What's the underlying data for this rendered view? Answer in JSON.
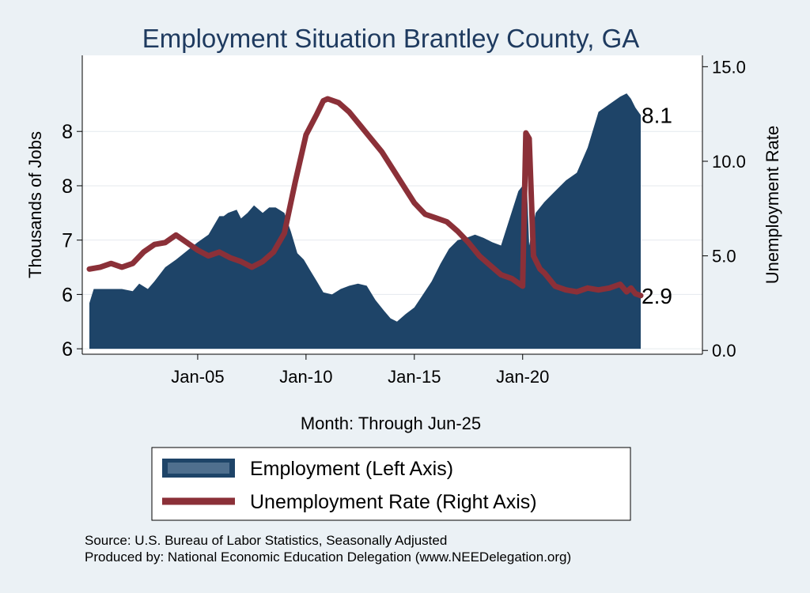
{
  "chart_data": {
    "type": "bar+line",
    "title": "Employment Situation Brantley  County, GA",
    "xlabel": "Month: Through Jun-25",
    "ylabel_left": "Thousands of Jobs",
    "ylabel_right": "Unemployment Rate",
    "x_range": [
      2000.0,
      2025.45
    ],
    "x_ticks": [
      {
        "label": "Jan-05",
        "value": 2005.0
      },
      {
        "label": "Jan-10",
        "value": 2010.0
      },
      {
        "label": "Jan-15",
        "value": 2015.0
      },
      {
        "label": "Jan-20",
        "value": 2020.0
      }
    ],
    "left_axis": {
      "ylim": [
        5.95,
        8.7
      ],
      "ticks": [
        {
          "label": "6",
          "value": 6.0
        },
        {
          "label": "6",
          "value": 6.5
        },
        {
          "label": "7",
          "value": 7.0
        },
        {
          "label": "8",
          "value": 7.5
        },
        {
          "label": "8",
          "value": 8.0
        }
      ]
    },
    "right_axis": {
      "ylim": [
        -0.2,
        15.6
      ],
      "ticks": [
        {
          "label": "0.0",
          "value": 0.0
        },
        {
          "label": "5.0",
          "value": 5.0
        },
        {
          "label": "10.0",
          "value": 10.0
        },
        {
          "label": "15.0",
          "value": 15.0
        }
      ]
    },
    "series": [
      {
        "name": "Employment (Left Axis)",
        "kind": "bar",
        "color": "#1e4468",
        "points": [
          [
            2000.0,
            6.42
          ],
          [
            2000.2,
            6.55
          ],
          [
            2000.5,
            6.55
          ],
          [
            2001.0,
            6.55
          ],
          [
            2001.5,
            6.55
          ],
          [
            2002.0,
            6.53
          ],
          [
            2002.3,
            6.6
          ],
          [
            2002.7,
            6.55
          ],
          [
            2003.0,
            6.62
          ],
          [
            2003.5,
            6.75
          ],
          [
            2004.0,
            6.82
          ],
          [
            2004.5,
            6.9
          ],
          [
            2005.0,
            6.98
          ],
          [
            2005.5,
            7.05
          ],
          [
            2006.0,
            7.22
          ],
          [
            2006.2,
            7.22
          ],
          [
            2006.4,
            7.25
          ],
          [
            2006.8,
            7.28
          ],
          [
            2007.0,
            7.2
          ],
          [
            2007.3,
            7.25
          ],
          [
            2007.6,
            7.32
          ],
          [
            2008.0,
            7.25
          ],
          [
            2008.3,
            7.3
          ],
          [
            2008.6,
            7.3
          ],
          [
            2009.0,
            7.25
          ],
          [
            2009.3,
            7.08
          ],
          [
            2009.6,
            6.88
          ],
          [
            2009.9,
            6.82
          ],
          [
            2010.2,
            6.72
          ],
          [
            2010.5,
            6.62
          ],
          [
            2010.8,
            6.52
          ],
          [
            2011.2,
            6.5
          ],
          [
            2011.6,
            6.55
          ],
          [
            2012.0,
            6.58
          ],
          [
            2012.4,
            6.6
          ],
          [
            2012.8,
            6.58
          ],
          [
            2013.2,
            6.45
          ],
          [
            2013.6,
            6.35
          ],
          [
            2013.9,
            6.28
          ],
          [
            2014.2,
            6.25
          ],
          [
            2014.6,
            6.32
          ],
          [
            2015.0,
            6.38
          ],
          [
            2015.4,
            6.5
          ],
          [
            2015.8,
            6.62
          ],
          [
            2016.2,
            6.78
          ],
          [
            2016.6,
            6.92
          ],
          [
            2017.0,
            7.0
          ],
          [
            2017.4,
            7.02
          ],
          [
            2017.8,
            7.05
          ],
          [
            2018.2,
            7.02
          ],
          [
            2018.6,
            6.98
          ],
          [
            2019.0,
            6.95
          ],
          [
            2019.4,
            7.2
          ],
          [
            2019.8,
            7.45
          ],
          [
            2020.0,
            7.5
          ],
          [
            2020.2,
            7.48
          ],
          [
            2020.3,
            6.95
          ],
          [
            2020.6,
            7.25
          ],
          [
            2021.0,
            7.35
          ],
          [
            2021.5,
            7.45
          ],
          [
            2022.0,
            7.55
          ],
          [
            2022.5,
            7.62
          ],
          [
            2023.0,
            7.85
          ],
          [
            2023.5,
            8.18
          ],
          [
            2024.0,
            8.25
          ],
          [
            2024.5,
            8.32
          ],
          [
            2024.8,
            8.35
          ],
          [
            2025.0,
            8.3
          ],
          [
            2025.2,
            8.22
          ],
          [
            2025.45,
            8.15
          ]
        ]
      },
      {
        "name": "Unemployment Rate (Right Axis)",
        "kind": "line",
        "color": "#8b3038",
        "points": [
          [
            2000.0,
            4.3
          ],
          [
            2000.5,
            4.4
          ],
          [
            2001.0,
            4.6
          ],
          [
            2001.5,
            4.4
          ],
          [
            2002.0,
            4.6
          ],
          [
            2002.5,
            5.2
          ],
          [
            2003.0,
            5.6
          ],
          [
            2003.5,
            5.7
          ],
          [
            2004.0,
            6.1
          ],
          [
            2004.5,
            5.7
          ],
          [
            2005.0,
            5.3
          ],
          [
            2005.5,
            5.0
          ],
          [
            2006.0,
            5.2
          ],
          [
            2006.5,
            4.9
          ],
          [
            2007.0,
            4.7
          ],
          [
            2007.5,
            4.4
          ],
          [
            2008.0,
            4.7
          ],
          [
            2008.5,
            5.2
          ],
          [
            2009.0,
            6.2
          ],
          [
            2009.5,
            8.9
          ],
          [
            2010.0,
            11.4
          ],
          [
            2010.5,
            12.5
          ],
          [
            2010.8,
            13.2
          ],
          [
            2011.0,
            13.3
          ],
          [
            2011.5,
            13.1
          ],
          [
            2012.0,
            12.6
          ],
          [
            2012.5,
            11.9
          ],
          [
            2013.0,
            11.2
          ],
          [
            2013.5,
            10.5
          ],
          [
            2014.0,
            9.6
          ],
          [
            2014.5,
            8.7
          ],
          [
            2015.0,
            7.8
          ],
          [
            2015.5,
            7.2
          ],
          [
            2016.0,
            7.0
          ],
          [
            2016.5,
            6.8
          ],
          [
            2017.0,
            6.3
          ],
          [
            2017.5,
            5.7
          ],
          [
            2018.0,
            5.0
          ],
          [
            2018.5,
            4.5
          ],
          [
            2019.0,
            4.0
          ],
          [
            2019.5,
            3.8
          ],
          [
            2020.0,
            3.4
          ],
          [
            2020.15,
            11.5
          ],
          [
            2020.3,
            11.2
          ],
          [
            2020.5,
            5.0
          ],
          [
            2020.8,
            4.3
          ],
          [
            2021.0,
            4.1
          ],
          [
            2021.5,
            3.4
          ],
          [
            2022.0,
            3.2
          ],
          [
            2022.5,
            3.1
          ],
          [
            2023.0,
            3.3
          ],
          [
            2023.5,
            3.2
          ],
          [
            2024.0,
            3.3
          ],
          [
            2024.5,
            3.5
          ],
          [
            2024.8,
            3.1
          ],
          [
            2025.0,
            3.3
          ],
          [
            2025.2,
            3.0
          ],
          [
            2025.45,
            2.9
          ]
        ]
      }
    ],
    "end_labels": {
      "employment": "8.1",
      "unemployment": "2.9"
    },
    "legend": {
      "position": "bottom",
      "entries": [
        {
          "label": "Employment (Left Axis)",
          "kind": "bar",
          "color": "#1e4468"
        },
        {
          "label": "Unemployment Rate (Right Axis)",
          "kind": "line",
          "color": "#8b3038"
        }
      ]
    },
    "source_lines": [
      "Source: U.S. Bureau of Labor Statistics, Seasonally Adjusted",
      "Produced by: National Economic Education Delegation (www.NEEDelegation.org)"
    ],
    "colors": {
      "background": "#ebf1f5",
      "plot_background": "#ffffff",
      "title": "#1e3a5f",
      "grid": "#e4eaee",
      "axis": "#000000"
    }
  }
}
